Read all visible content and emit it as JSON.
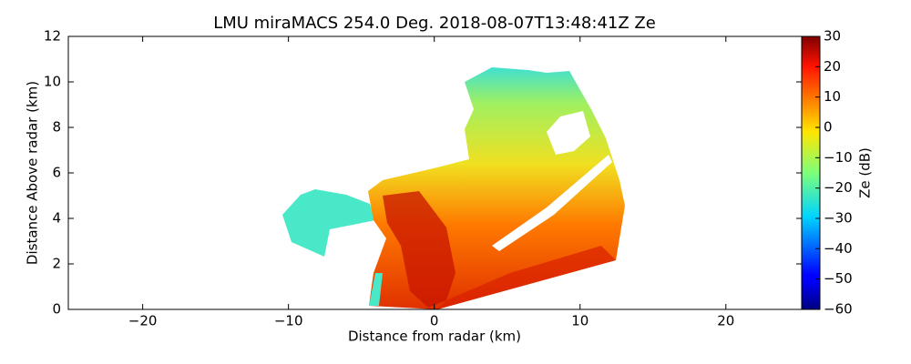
{
  "chart_data": {
    "type": "rhi",
    "title": "LMU miraMACS 254.0 Deg. 2018-08-07T13:48:41Z  Ze",
    "x_label": "Distance from radar (km)",
    "y_label": "Distance Above radar  (km)",
    "xlim": [
      -25.1,
      25.2
    ],
    "xticks": [
      {
        "value": -20,
        "label": "−20"
      },
      {
        "value": -10,
        "label": "−10"
      },
      0,
      10,
      20
    ],
    "ylim": [
      0,
      12
    ],
    "yticks": [
      0,
      2,
      4,
      6,
      8,
      10,
      12
    ],
    "colorbar": {
      "label": "Ze (dB)",
      "colormap": "jet",
      "lim": [
        -60,
        30
      ],
      "ticks": [
        {
          "value": -60,
          "label": "−60"
        },
        {
          "value": -50,
          "label": "−50"
        },
        {
          "value": -40,
          "label": "−40"
        },
        {
          "value": -30,
          "label": "−30"
        },
        {
          "value": -20,
          "label": "−20"
        },
        {
          "value": -10,
          "label": "−10"
        },
        0,
        10,
        20,
        30
      ]
    }
  }
}
